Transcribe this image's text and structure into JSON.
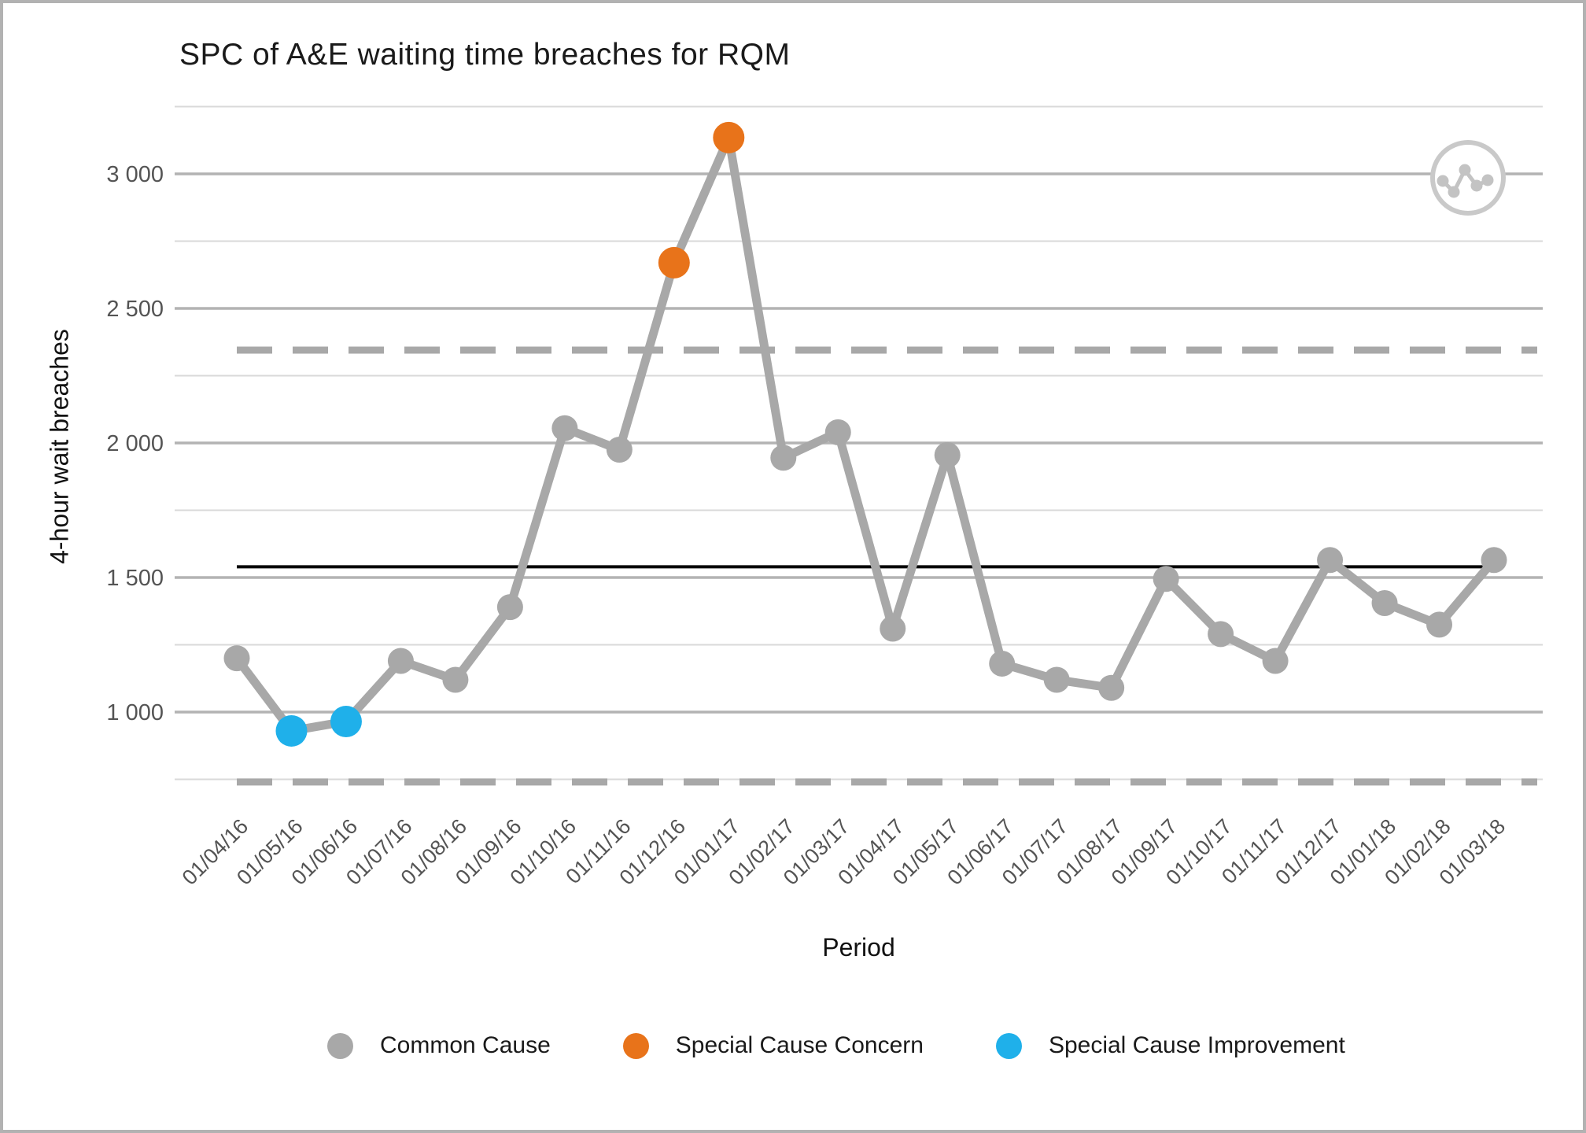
{
  "chart_data": {
    "type": "line",
    "title": "SPC of A&E waiting time breaches for RQM",
    "xlabel": "Period",
    "ylabel": "4-hour wait breaches",
    "x": [
      "01/04/16",
      "01/05/16",
      "01/06/16",
      "01/07/16",
      "01/08/16",
      "01/09/16",
      "01/10/16",
      "01/11/16",
      "01/12/16",
      "01/01/17",
      "01/02/17",
      "01/03/17",
      "01/04/17",
      "01/05/17",
      "01/06/17",
      "01/07/17",
      "01/08/17",
      "01/09/17",
      "01/10/17",
      "01/11/17",
      "01/12/17",
      "01/01/18",
      "01/02/18",
      "01/03/18"
    ],
    "series": [
      {
        "name": "4-hour wait breaches",
        "values": [
          1200,
          930,
          965,
          1190,
          1120,
          1390,
          2055,
          1975,
          2670,
          3135,
          1945,
          2040,
          1310,
          1955,
          1180,
          1120,
          1090,
          1495,
          1290,
          1190,
          1565,
          1405,
          1325,
          1565
        ]
      }
    ],
    "point_classes": [
      "common",
      "improvement",
      "improvement",
      "common",
      "common",
      "common",
      "common",
      "common",
      "concern",
      "concern",
      "common",
      "common",
      "common",
      "common",
      "common",
      "common",
      "common",
      "common",
      "common",
      "common",
      "common",
      "common",
      "common",
      "common"
    ],
    "control_lines": {
      "mean": 1540,
      "ucl": 2345,
      "lcl": 740
    },
    "y_ticks": [
      1000,
      1500,
      2000,
      2500,
      3000
    ],
    "y_tick_labels": [
      "1 000",
      "1 500",
      "2 000",
      "2 500",
      "3 000"
    ],
    "minor_gridlines": [
      750,
      1250,
      1750,
      2250,
      2750,
      3250
    ],
    "ylim": [
      680,
      3300
    ],
    "grid": true,
    "legend_position": "bottom",
    "legend": [
      {
        "label": "Common Cause",
        "color": "#A8A8A8"
      },
      {
        "label": "Special Cause Concern",
        "color": "#E8731A"
      },
      {
        "label": "Special Cause Improvement",
        "color": "#1FB0EA"
      }
    ],
    "colors": {
      "line": "#A8A8A8",
      "common_cause": "#A8A8A8",
      "special_cause_concern": "#E8731A",
      "special_cause_improvement": "#1FB0EA",
      "center_line": "#000000",
      "limit_lines": "#A8A8A8",
      "major_grid": "#B3B3B3",
      "minor_grid": "#D9D9D9",
      "tick_text": "#545454"
    },
    "watermark_icon": "line-chart-circle"
  }
}
